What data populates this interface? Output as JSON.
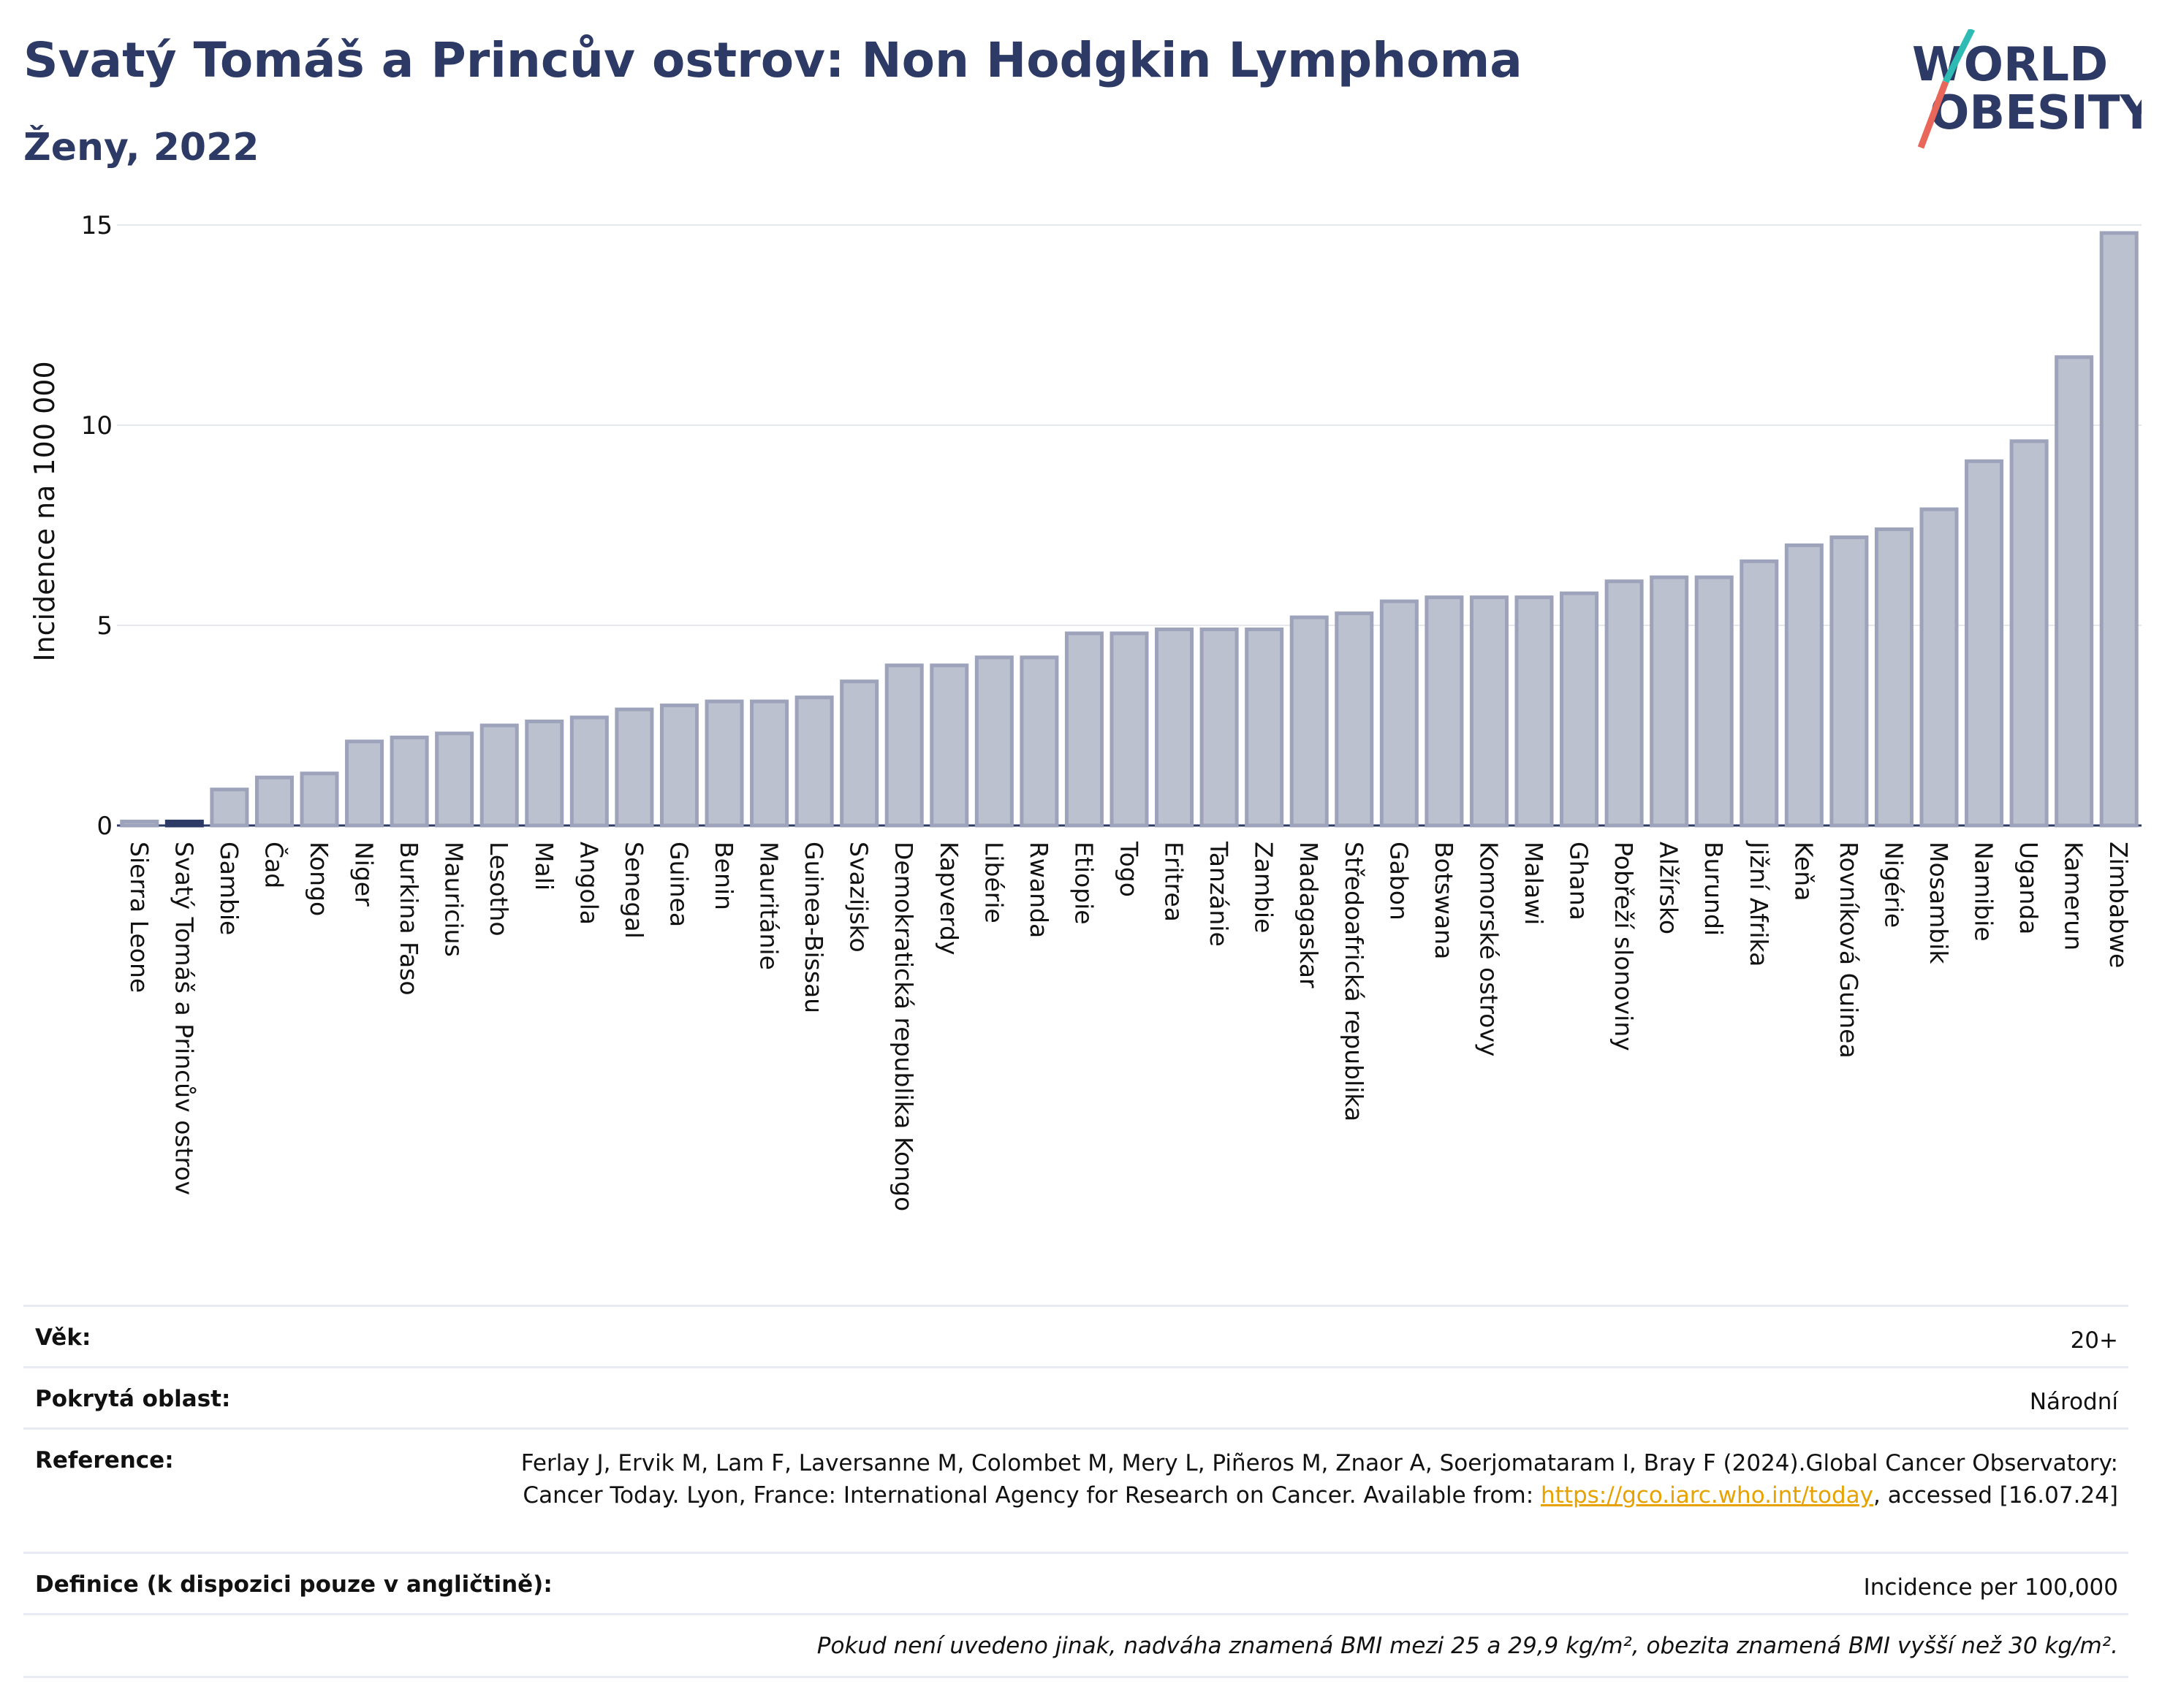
{
  "header": {
    "title": "Svatý Tomáš a Princův ostrov: Non Hodgkin Lymphoma",
    "subtitle": "Ženy, 2022"
  },
  "logo": {
    "line1": "WORLD",
    "line2": "OBESITY",
    "accent_teal": "#2ebbb3",
    "accent_red": "#e8665a",
    "text_color": "#2d3a66"
  },
  "colors": {
    "bar_fill": "#bcc1cf",
    "bar_stroke": "#9da3ba",
    "highlight": "#2d3a66",
    "grid": "#e6e8ef",
    "axis": "#2d3a66"
  },
  "chart_data": {
    "type": "bar",
    "title": "Svatý Tomáš a Princův ostrov: Non Hodgkin Lymphoma",
    "subtitle": "Ženy, 2022",
    "xlabel": "",
    "ylabel": "Incidence na 100 000",
    "ylim": [
      0,
      15
    ],
    "yticks": [
      0,
      5,
      10,
      15
    ],
    "grid": true,
    "highlight": "Svatý Tomáš a Princův ostrov",
    "categories": [
      "Sierra Leone",
      "Svatý Tomáš a Princův ostrov",
      "Gambie",
      "Čad",
      "Kongo",
      "Niger",
      "Burkina Faso",
      "Mauricius",
      "Lesotho",
      "Mali",
      "Angola",
      "Senegal",
      "Guinea",
      "Benin",
      "Mauritánie",
      "Guinea-Bissau",
      "Svazijsko",
      "Demokratická republika Kongo",
      "Kapverdy",
      "Libérie",
      "Rwanda",
      "Etiopie",
      "Togo",
      "Eritrea",
      "Tanzánie",
      "Zambie",
      "Madagaskar",
      "Středoafrická republika",
      "Gabon",
      "Botswana",
      "Komorské ostrovy",
      "Malawi",
      "Ghana",
      "Pobřeží slonoviny",
      "Alžírsko",
      "Burundi",
      "Jižní Afrika",
      "Keňa",
      "Rovníková Guinea",
      "Nigérie",
      "Mosambik",
      "Namibie",
      "Uganda",
      "Kamerun",
      "Zimbabwe"
    ],
    "values": [
      0.1,
      0.1,
      0.9,
      1.2,
      1.3,
      2.1,
      2.2,
      2.3,
      2.5,
      2.6,
      2.7,
      2.9,
      3.0,
      3.1,
      3.1,
      3.2,
      3.6,
      4.0,
      4.0,
      4.2,
      4.2,
      4.8,
      4.8,
      4.9,
      4.9,
      4.9,
      5.2,
      5.3,
      5.6,
      5.7,
      5.7,
      5.7,
      5.8,
      6.1,
      6.2,
      6.2,
      6.6,
      7.0,
      7.2,
      7.4,
      7.9,
      9.1,
      9.6,
      11.7,
      14.8
    ]
  },
  "meta": {
    "age_label": "Věk:",
    "age_value": "20+",
    "area_label": "Pokrytá oblast:",
    "area_value": "Národní",
    "ref_label": "Reference:",
    "ref_text": "Ferlay J, Ervik M, Lam F, Laversanne M, Colombet M, Mery L, Piñeros M, Znaor A, Soerjomataram I, Bray F (2024).Global Cancer Observatory: Cancer Today. Lyon, France: International Agency for Research on Cancer. Available from: ",
    "ref_link": "https://gco.iarc.who.int/today",
    "ref_tail": ", accessed [16.07.24]",
    "def_label": "Definice (k dispozici pouze v angličtině):",
    "def_value": "Incidence per 100,000",
    "footnote": "Pokud není uvedeno jinak, nadváha znamená BMI mezi 25 a 29,9 kg/m², obezita znamená BMI vyšší než 30 kg/m²."
  }
}
